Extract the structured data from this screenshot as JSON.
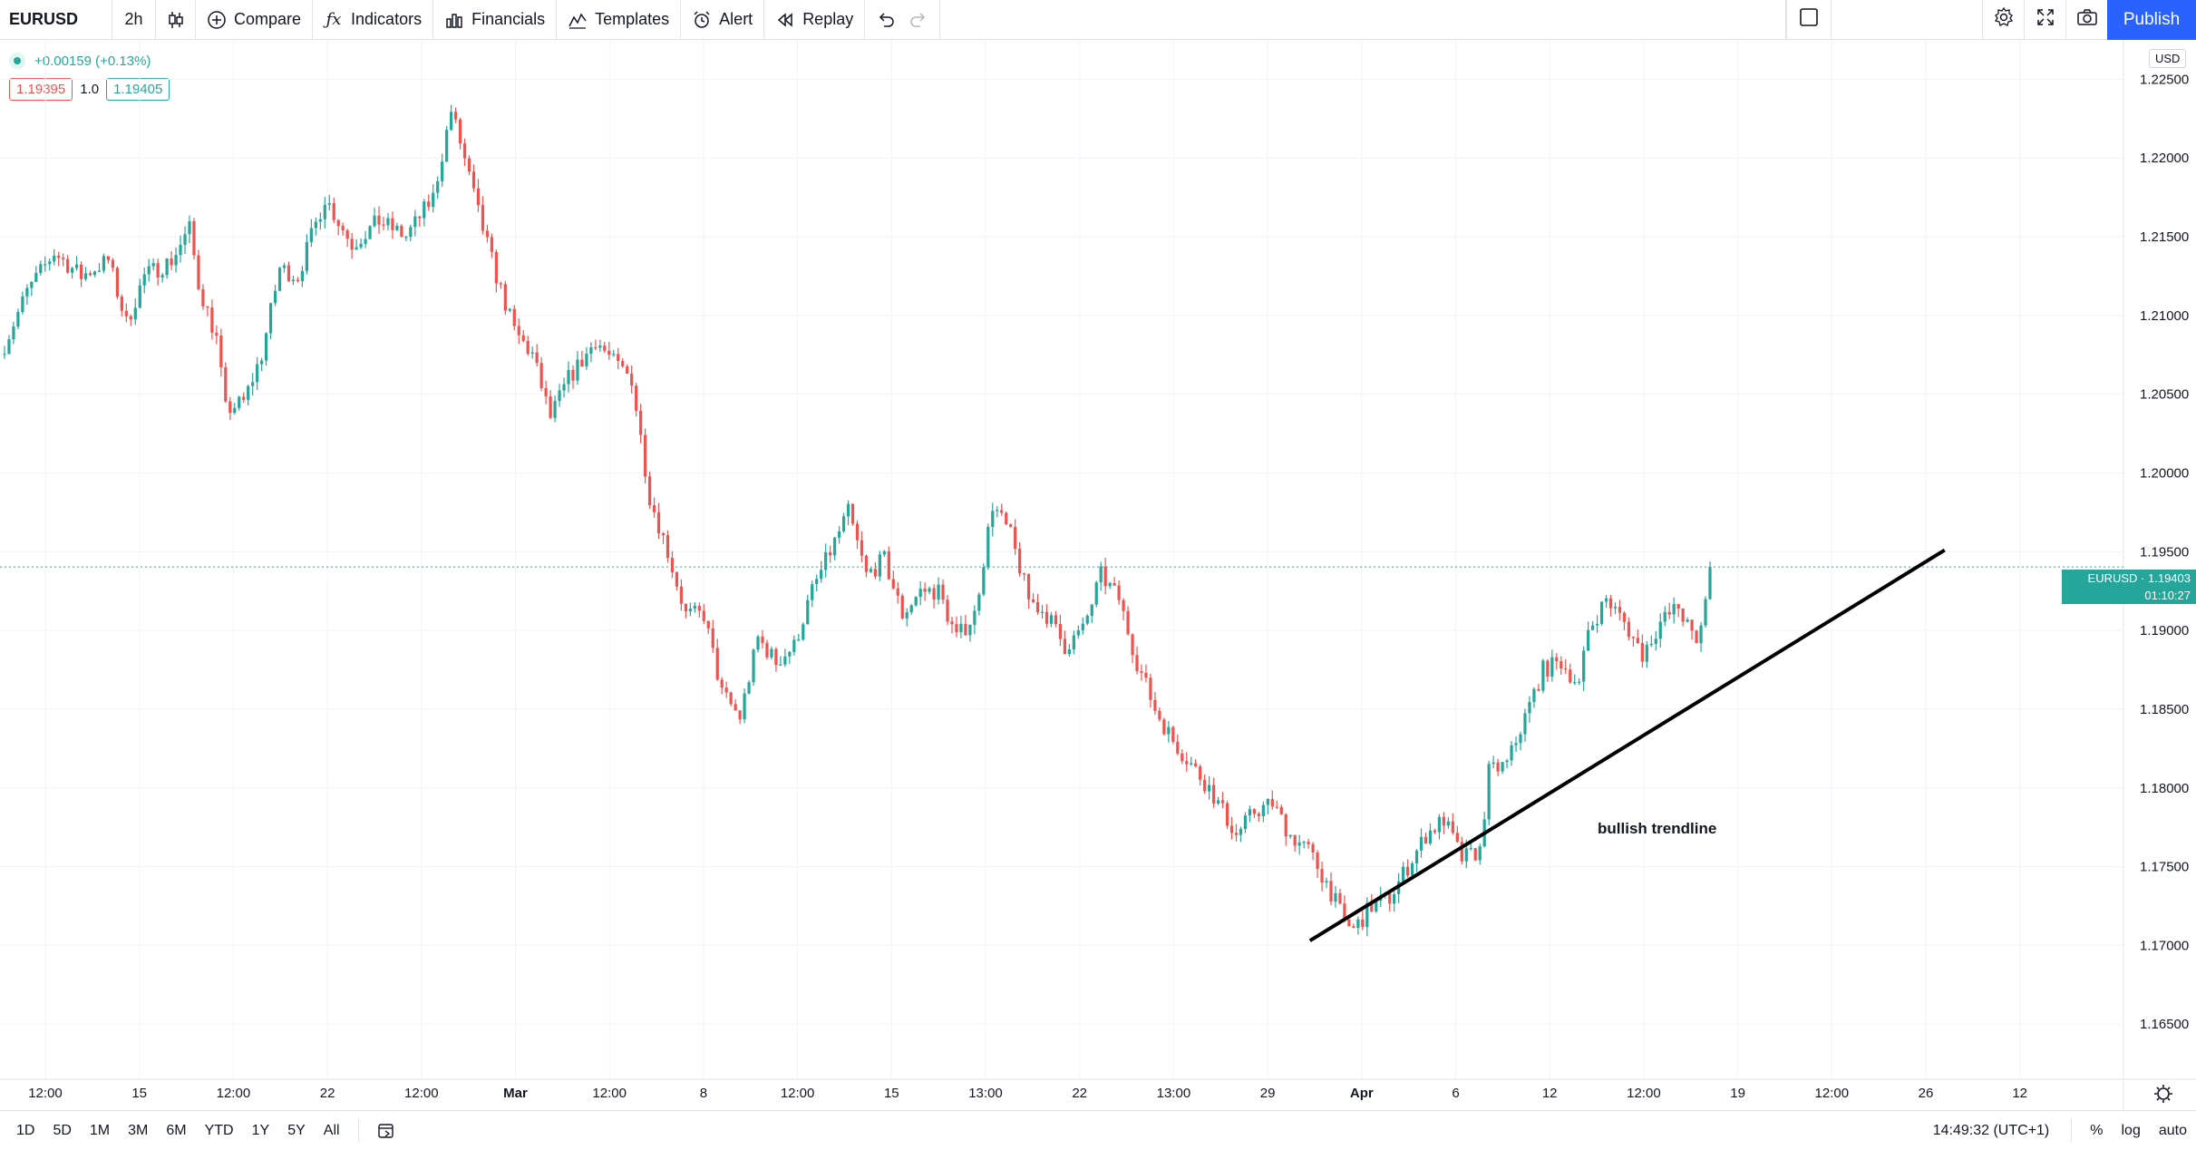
{
  "toolbar": {
    "symbol": "EURUSD",
    "interval": "2h",
    "compare": "Compare",
    "indicators": "Indicators",
    "financials": "Financials",
    "templates": "Templates",
    "alert": "Alert",
    "replay": "Replay",
    "publish": "Publish"
  },
  "legend": {
    "change": "+0.00159 (+0.13%)",
    "bid": "1.19395",
    "spread": "1.0",
    "ask": "1.19405"
  },
  "price_axis": {
    "currency": "USD",
    "last_price_label": "EURUSD · 1.19403",
    "countdown": "01:10:27"
  },
  "annotation": "bullish trendline",
  "bottom": {
    "ranges": [
      "1D",
      "5D",
      "1M",
      "3M",
      "6M",
      "YTD",
      "1Y",
      "5Y",
      "All"
    ],
    "time": "14:49:32 (UTC+1)",
    "percent": "%",
    "log": "log",
    "auto": "auto"
  },
  "colors": {
    "up": "#26a69a",
    "down": "#ef5350",
    "accent": "#2962ff",
    "grid": "#f0f3fa",
    "trendline": "#000000"
  },
  "chart_data": {
    "type": "candlestick",
    "symbol": "EURUSD",
    "interval": "2h",
    "ylim": [
      1.1615,
      1.2275
    ],
    "y_ticks": [
      "1.22500",
      "1.22000",
      "1.21500",
      "1.21000",
      "1.20500",
      "1.20000",
      "1.19500",
      "1.19000",
      "1.18500",
      "1.18000",
      "1.17500",
      "1.17000",
      "1.16500"
    ],
    "x_ticks": [
      "12:00",
      "15",
      "12:00",
      "22",
      "12:00",
      "Mar",
      "12:00",
      "8",
      "12:00",
      "15",
      "13:00",
      "22",
      "13:00",
      "29",
      "Apr",
      "6",
      "12",
      "12:00",
      "19",
      "12:00",
      "26",
      "12"
    ],
    "last_price": 1.19403,
    "price_path": [
      [
        0,
        1.2075
      ],
      [
        6,
        1.2115
      ],
      [
        12,
        1.214
      ],
      [
        18,
        1.2125
      ],
      [
        24,
        1.2135
      ],
      [
        28,
        1.2095
      ],
      [
        32,
        1.2125
      ],
      [
        38,
        1.2135
      ],
      [
        42,
        1.2155
      ],
      [
        44,
        1.212
      ],
      [
        48,
        1.2085
      ],
      [
        50,
        1.204
      ],
      [
        54,
        1.2045
      ],
      [
        58,
        1.2075
      ],
      [
        62,
        1.213
      ],
      [
        66,
        1.2125
      ],
      [
        72,
        1.2175
      ],
      [
        78,
        1.2145
      ],
      [
        84,
        1.216
      ],
      [
        90,
        1.215
      ],
      [
        96,
        1.2175
      ],
      [
        100,
        1.223
      ],
      [
        102,
        1.221
      ],
      [
        106,
        1.2165
      ],
      [
        110,
        1.2125
      ],
      [
        114,
        1.209
      ],
      [
        118,
        1.2075
      ],
      [
        122,
        1.2035
      ],
      [
        126,
        1.206
      ],
      [
        130,
        1.2075
      ],
      [
        132,
        1.2085
      ],
      [
        136,
        1.207
      ],
      [
        140,
        1.206
      ],
      [
        144,
        1.1985
      ],
      [
        148,
        1.195
      ],
      [
        152,
        1.191
      ],
      [
        156,
        1.191
      ],
      [
        160,
        1.186
      ],
      [
        164,
        1.1845
      ],
      [
        168,
        1.1895
      ],
      [
        172,
        1.188
      ],
      [
        176,
        1.189
      ],
      [
        180,
        1.1925
      ],
      [
        184,
        1.195
      ],
      [
        188,
        1.1975
      ],
      [
        192,
        1.1935
      ],
      [
        196,
        1.1945
      ],
      [
        200,
        1.191
      ],
      [
        204,
        1.1925
      ],
      [
        208,
        1.1925
      ],
      [
        212,
        1.1895
      ],
      [
        216,
        1.191
      ],
      [
        220,
        1.198
      ],
      [
        224,
        1.196
      ],
      [
        228,
        1.192
      ],
      [
        232,
        1.191
      ],
      [
        236,
        1.189
      ],
      [
        240,
        1.19
      ],
      [
        244,
        1.1935
      ],
      [
        248,
        1.192
      ],
      [
        252,
        1.188
      ],
      [
        256,
        1.185
      ],
      [
        260,
        1.183
      ],
      [
        264,
        1.1815
      ],
      [
        268,
        1.18
      ],
      [
        272,
        1.178
      ],
      [
        274,
        1.177
      ],
      [
        278,
        1.1785
      ],
      [
        282,
        1.179
      ],
      [
        286,
        1.177
      ],
      [
        290,
        1.176
      ],
      [
        294,
        1.174
      ],
      [
        298,
        1.1715
      ],
      [
        300,
        1.171
      ],
      [
        304,
        1.1725
      ],
      [
        308,
        1.173
      ],
      [
        312,
        1.175
      ],
      [
        316,
        1.177
      ],
      [
        320,
        1.178
      ],
      [
        324,
        1.1755
      ],
      [
        328,
        1.176
      ],
      [
        330,
        1.181
      ],
      [
        334,
        1.1815
      ],
      [
        338,
        1.1845
      ],
      [
        342,
        1.1875
      ],
      [
        346,
        1.188
      ],
      [
        350,
        1.1865
      ],
      [
        352,
        1.19
      ],
      [
        356,
        1.192
      ],
      [
        360,
        1.1905
      ],
      [
        364,
        1.1885
      ],
      [
        368,
        1.1905
      ],
      [
        372,
        1.1915
      ],
      [
        376,
        1.189
      ],
      [
        379,
        1.1935
      ]
    ],
    "trendline": {
      "start": {
        "date": "Mar 31",
        "price": 1.1703
      },
      "end": {
        "date": "Apr 27",
        "price": 1.1951
      },
      "label": "bullish trendline"
    }
  }
}
